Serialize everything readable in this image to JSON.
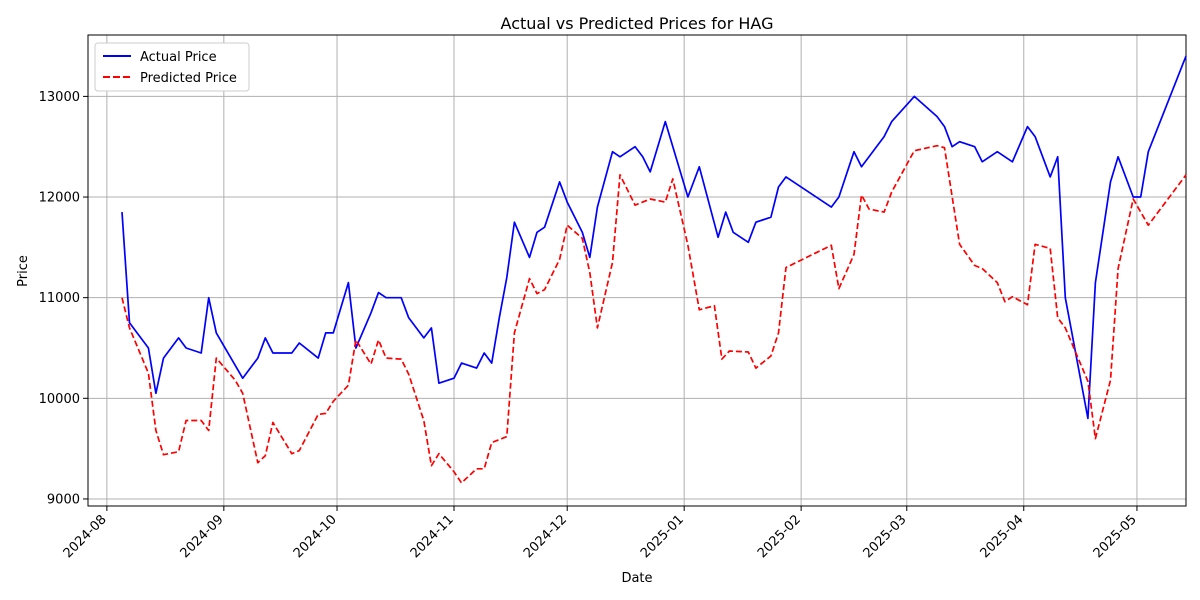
{
  "chart_data": {
    "type": "line",
    "title": "Actual vs Predicted Prices for HAG",
    "xlabel": "Date",
    "ylabel": "Price",
    "x_ticks": [
      "2024-08",
      "2024-09",
      "2024-10",
      "2024-11",
      "2024-12",
      "2025-01",
      "2025-02",
      "2025-03",
      "2025-04",
      "2025-05"
    ],
    "y_ticks": [
      9000,
      10000,
      11000,
      12000,
      13000
    ],
    "xlim": [
      "2024-07-27",
      "2025-05-14"
    ],
    "ylim": [
      8930,
      13610
    ],
    "grid": true,
    "legend_position": "top-left",
    "series": [
      {
        "name": "Actual Price",
        "color": "#0000ff",
        "style": "solid",
        "points": [
          [
            "2024-08-05",
            11850
          ],
          [
            "2024-08-07",
            10750
          ],
          [
            "2024-08-12",
            10500
          ],
          [
            "2024-08-14",
            10050
          ],
          [
            "2024-08-16",
            10400
          ],
          [
            "2024-08-20",
            10600
          ],
          [
            "2024-08-22",
            10500
          ],
          [
            "2024-08-26",
            10450
          ],
          [
            "2024-08-28",
            11000
          ],
          [
            "2024-08-30",
            10650
          ],
          [
            "2024-09-06",
            10200
          ],
          [
            "2024-09-10",
            10400
          ],
          [
            "2024-09-12",
            10600
          ],
          [
            "2024-09-14",
            10450
          ],
          [
            "2024-09-19",
            10450
          ],
          [
            "2024-09-21",
            10550
          ],
          [
            "2024-09-26",
            10400
          ],
          [
            "2024-09-28",
            10650
          ],
          [
            "2024-09-30",
            10650
          ],
          [
            "2024-10-04",
            11150
          ],
          [
            "2024-10-06",
            10500
          ],
          [
            "2024-10-10",
            10850
          ],
          [
            "2024-10-12",
            11050
          ],
          [
            "2024-10-14",
            11000
          ],
          [
            "2024-10-18",
            11000
          ],
          [
            "2024-10-20",
            10800
          ],
          [
            "2024-10-24",
            10600
          ],
          [
            "2024-10-26",
            10700
          ],
          [
            "2024-10-28",
            10150
          ],
          [
            "2024-11-01",
            10200
          ],
          [
            "2024-11-03",
            10350
          ],
          [
            "2024-11-07",
            10300
          ],
          [
            "2024-11-09",
            10450
          ],
          [
            "2024-11-11",
            10350
          ],
          [
            "2024-11-13",
            10800
          ],
          [
            "2024-11-15",
            11200
          ],
          [
            "2024-11-17",
            11750
          ],
          [
            "2024-11-21",
            11400
          ],
          [
            "2024-11-23",
            11650
          ],
          [
            "2024-11-25",
            11700
          ],
          [
            "2024-11-29",
            12150
          ],
          [
            "2024-12-01",
            11950
          ],
          [
            "2024-12-05",
            11650
          ],
          [
            "2024-12-07",
            11400
          ],
          [
            "2024-12-09",
            11900
          ],
          [
            "2024-12-13",
            12450
          ],
          [
            "2024-12-15",
            12400
          ],
          [
            "2024-12-19",
            12500
          ],
          [
            "2024-12-21",
            12400
          ],
          [
            "2024-12-23",
            12250
          ],
          [
            "2024-12-27",
            12750
          ],
          [
            "2025-01-02",
            12000
          ],
          [
            "2025-01-05",
            12300
          ],
          [
            "2025-01-10",
            11600
          ],
          [
            "2025-01-12",
            11850
          ],
          [
            "2025-01-14",
            11650
          ],
          [
            "2025-01-18",
            11550
          ],
          [
            "2025-01-20",
            11750
          ],
          [
            "2025-01-24",
            11800
          ],
          [
            "2025-01-26",
            12100
          ],
          [
            "2025-01-28",
            12200
          ],
          [
            "2025-02-09",
            11900
          ],
          [
            "2025-02-11",
            12000
          ],
          [
            "2025-02-15",
            12450
          ],
          [
            "2025-02-17",
            12300
          ],
          [
            "2025-02-23",
            12600
          ],
          [
            "2025-02-25",
            12750
          ],
          [
            "2025-03-03",
            13000
          ],
          [
            "2025-03-09",
            12800
          ],
          [
            "2025-03-11",
            12700
          ],
          [
            "2025-03-13",
            12500
          ],
          [
            "2025-03-15",
            12550
          ],
          [
            "2025-03-19",
            12500
          ],
          [
            "2025-03-21",
            12350
          ],
          [
            "2025-03-25",
            12450
          ],
          [
            "2025-03-29",
            12350
          ],
          [
            "2025-04-02",
            12700
          ],
          [
            "2025-04-04",
            12600
          ],
          [
            "2025-04-08",
            12200
          ],
          [
            "2025-04-10",
            12400
          ],
          [
            "2025-04-12",
            11000
          ],
          [
            "2025-04-18",
            9800
          ],
          [
            "2025-04-20",
            11150
          ],
          [
            "2025-04-24",
            12150
          ],
          [
            "2025-04-26",
            12400
          ],
          [
            "2025-04-30",
            12000
          ],
          [
            "2025-05-02",
            12000
          ],
          [
            "2025-05-04",
            12450
          ],
          [
            "2025-05-14",
            13400
          ]
        ]
      },
      {
        "name": "Predicted Price",
        "color": "#ff0000",
        "style": "dashed",
        "points": [
          [
            "2024-08-05",
            11000
          ],
          [
            "2024-08-07",
            10700
          ],
          [
            "2024-08-12",
            10250
          ],
          [
            "2024-08-14",
            9680
          ],
          [
            "2024-08-16",
            9440
          ],
          [
            "2024-08-20",
            9470
          ],
          [
            "2024-08-22",
            9780
          ],
          [
            "2024-08-26",
            9780
          ],
          [
            "2024-08-28",
            9680
          ],
          [
            "2024-08-30",
            10400
          ],
          [
            "2024-09-04",
            10180
          ],
          [
            "2024-09-06",
            10050
          ],
          [
            "2024-09-10",
            9360
          ],
          [
            "2024-09-12",
            9430
          ],
          [
            "2024-09-14",
            9760
          ],
          [
            "2024-09-19",
            9450
          ],
          [
            "2024-09-21",
            9480
          ],
          [
            "2024-09-26",
            9840
          ],
          [
            "2024-09-28",
            9850
          ],
          [
            "2024-09-30",
            9970
          ],
          [
            "2024-10-04",
            10130
          ],
          [
            "2024-10-06",
            10580
          ],
          [
            "2024-10-10",
            10340
          ],
          [
            "2024-10-12",
            10580
          ],
          [
            "2024-10-14",
            10400
          ],
          [
            "2024-10-18",
            10390
          ],
          [
            "2024-10-20",
            10240
          ],
          [
            "2024-10-24",
            9780
          ],
          [
            "2024-10-26",
            9330
          ],
          [
            "2024-10-28",
            9450
          ],
          [
            "2024-11-01",
            9270
          ],
          [
            "2024-11-03",
            9160
          ],
          [
            "2024-11-07",
            9300
          ],
          [
            "2024-11-09",
            9300
          ],
          [
            "2024-11-11",
            9560
          ],
          [
            "2024-11-15",
            9620
          ],
          [
            "2024-11-17",
            10650
          ],
          [
            "2024-11-21",
            11190
          ],
          [
            "2024-11-23",
            11040
          ],
          [
            "2024-11-25",
            11080
          ],
          [
            "2024-11-29",
            11380
          ],
          [
            "2024-12-01",
            11720
          ],
          [
            "2024-12-05",
            11590
          ],
          [
            "2024-12-07",
            11250
          ],
          [
            "2024-12-09",
            10700
          ],
          [
            "2024-12-13",
            11350
          ],
          [
            "2024-12-15",
            12220
          ],
          [
            "2024-12-19",
            11920
          ],
          [
            "2024-12-23",
            11980
          ],
          [
            "2024-12-27",
            11950
          ],
          [
            "2024-12-29",
            12180
          ],
          [
            "2025-01-02",
            11520
          ],
          [
            "2025-01-05",
            10880
          ],
          [
            "2025-01-09",
            10920
          ],
          [
            "2025-01-11",
            10390
          ],
          [
            "2025-01-13",
            10470
          ],
          [
            "2025-01-18",
            10460
          ],
          [
            "2025-01-20",
            10300
          ],
          [
            "2025-01-24",
            10420
          ],
          [
            "2025-01-26",
            10650
          ],
          [
            "2025-01-28",
            11300
          ],
          [
            "2025-02-09",
            11520
          ],
          [
            "2025-02-11",
            11090
          ],
          [
            "2025-02-15",
            11430
          ],
          [
            "2025-02-17",
            12020
          ],
          [
            "2025-02-19",
            11880
          ],
          [
            "2025-02-23",
            11850
          ],
          [
            "2025-02-25",
            12050
          ],
          [
            "2025-03-03",
            12460
          ],
          [
            "2025-03-09",
            12510
          ],
          [
            "2025-03-11",
            12490
          ],
          [
            "2025-03-15",
            11530
          ],
          [
            "2025-03-19",
            11320
          ],
          [
            "2025-03-21",
            11290
          ],
          [
            "2025-03-25",
            11150
          ],
          [
            "2025-03-27",
            10960
          ],
          [
            "2025-03-29",
            11010
          ],
          [
            "2025-04-02",
            10930
          ],
          [
            "2025-04-04",
            11530
          ],
          [
            "2025-04-08",
            11490
          ],
          [
            "2025-04-10",
            10800
          ],
          [
            "2025-04-12",
            10700
          ],
          [
            "2025-04-18",
            10170
          ],
          [
            "2025-04-20",
            9600
          ],
          [
            "2025-04-24",
            10180
          ],
          [
            "2025-04-26",
            11290
          ],
          [
            "2025-04-30",
            11980
          ],
          [
            "2025-05-04",
            11720
          ],
          [
            "2025-05-14",
            12220
          ]
        ]
      }
    ]
  }
}
